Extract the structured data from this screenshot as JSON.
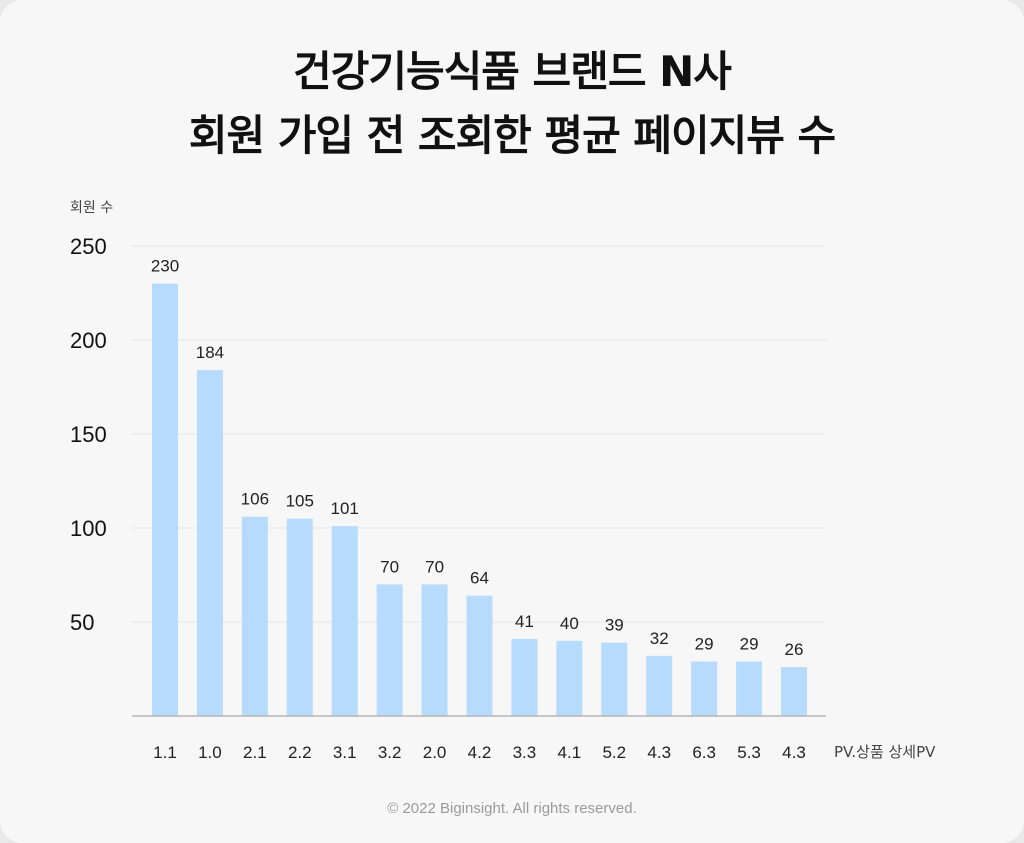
{
  "title": {
    "line1": "건강기능식품 브랜드 N사",
    "line2": "회원 가입 전 조회한 평균 페이지뷰 수"
  },
  "footer": "© 2022 Biginsight. All rights reserved.",
  "colors": {
    "bar": "#b7dbfd",
    "background": "#f7f7f7",
    "grid": "#e6e6e6",
    "axis": "#b5b5b5"
  },
  "chart_data": {
    "type": "bar",
    "ylabel": "회원 수",
    "xlabel": "PV.상품 상세PV",
    "categories": [
      "1.1",
      "1.0",
      "2.1",
      "2.2",
      "3.1",
      "3.2",
      "2.0",
      "4.2",
      "3.3",
      "4.1",
      "5.2",
      "4.3",
      "6.3",
      "5.3",
      "4.3"
    ],
    "values": [
      230,
      184,
      106,
      105,
      101,
      70,
      70,
      64,
      41,
      40,
      39,
      32,
      29,
      29,
      26
    ],
    "ylim": [
      0,
      250
    ],
    "yticks": [
      50,
      100,
      150,
      200,
      250
    ],
    "grid": true,
    "data_labels": true
  }
}
